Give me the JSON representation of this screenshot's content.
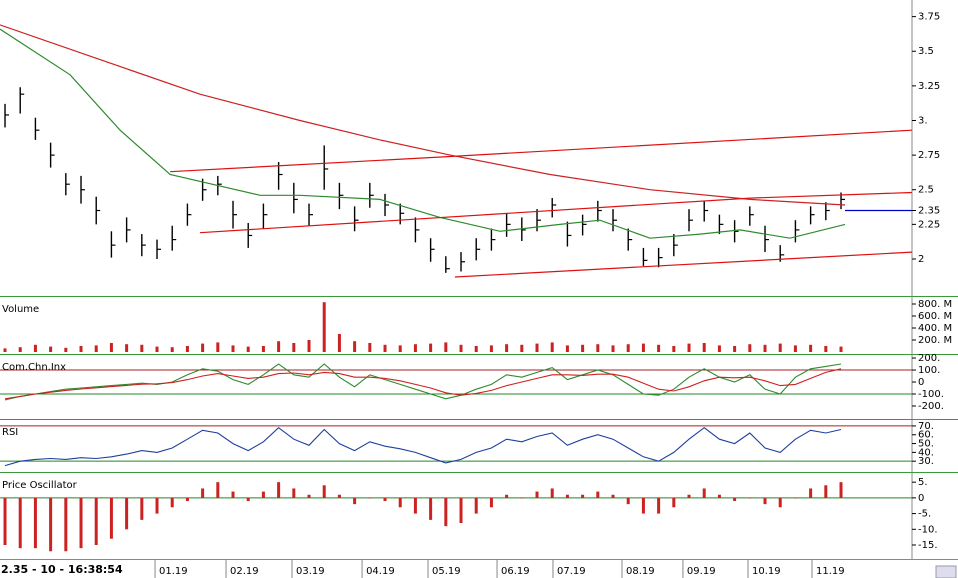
{
  "status": "2.35 - 10 - 16:38:54",
  "chart_data": [
    {
      "type": "ohlc",
      "color": "#000000",
      "xlim": [
        -0.33,
        59.67
      ],
      "xticks": [
        {
          "value": 9.87,
          "label": "01.19"
        },
        {
          "value": 14.54,
          "label": "02.19"
        },
        {
          "value": 18.88,
          "label": "03.19"
        },
        {
          "value": 23.49,
          "label": "04.19"
        },
        {
          "value": 27.83,
          "label": "05.19"
        },
        {
          "value": 32.37,
          "label": "06.19"
        },
        {
          "value": 36.05,
          "label": "07.19"
        },
        {
          "value": 40.59,
          "label": "08.19"
        },
        {
          "value": 44.6,
          "label": "09.19"
        },
        {
          "value": 48.88,
          "label": "10.19"
        },
        {
          "value": 53.09,
          "label": "11.19"
        }
      ],
      "ylim": [
        1.74,
        3.87
      ],
      "yticks": [
        2,
        2.25,
        2.35,
        2.5,
        2.75,
        {
          "value": 3,
          "label": "3."
        },
        3.25,
        3.5,
        3.75
      ],
      "high": [
        3.12,
        3.24,
        3.02,
        2.84,
        2.62,
        2.6,
        2.45,
        2.2,
        2.3,
        2.18,
        2.14,
        2.24,
        2.4,
        2.58,
        2.6,
        2.42,
        2.26,
        2.4,
        2.7,
        2.55,
        2.4,
        2.82,
        2.55,
        2.38,
        2.55,
        2.47,
        2.4,
        2.3,
        2.15,
        2.02,
        2.05,
        2.15,
        2.22,
        2.33,
        2.3,
        2.36,
        2.44,
        2.27,
        2.32,
        2.42,
        2.36,
        2.22,
        2.08,
        2.08,
        2.18,
        2.36,
        2.42,
        2.32,
        2.28,
        2.38,
        2.24,
        2.1,
        2.28,
        2.38,
        2.41,
        2.48
      ],
      "low": [
        2.95,
        3.05,
        2.86,
        2.66,
        2.46,
        2.4,
        2.25,
        2.01,
        2.12,
        2.02,
        2.0,
        2.06,
        2.24,
        2.42,
        2.46,
        2.22,
        2.08,
        2.22,
        2.5,
        2.33,
        2.24,
        2.5,
        2.36,
        2.2,
        2.37,
        2.31,
        2.25,
        2.12,
        1.98,
        1.9,
        1.91,
        1.99,
        2.06,
        2.16,
        2.13,
        2.2,
        2.3,
        2.09,
        2.17,
        2.27,
        2.2,
        2.06,
        1.95,
        1.94,
        2.02,
        2.2,
        2.27,
        2.18,
        2.12,
        2.24,
        2.05,
        1.98,
        2.12,
        2.25,
        2.28,
        2.36
      ],
      "close": [
        3.04,
        3.19,
        2.93,
        2.75,
        2.54,
        2.5,
        2.35,
        2.1,
        2.21,
        2.1,
        2.07,
        2.14,
        2.32,
        2.5,
        2.54,
        2.32,
        2.17,
        2.32,
        2.61,
        2.43,
        2.32,
        2.65,
        2.46,
        2.28,
        2.46,
        2.39,
        2.33,
        2.21,
        2.07,
        1.93,
        1.98,
        2.07,
        2.14,
        2.25,
        2.21,
        2.28,
        2.39,
        2.17,
        2.25,
        2.35,
        2.28,
        2.14,
        1.99,
        2.01,
        2.1,
        2.28,
        2.35,
        2.25,
        2.2,
        2.32,
        2.14,
        2.03,
        2.21,
        2.32,
        2.35,
        2.43
      ],
      "overlays": [
        {
          "color": "#2e8b2e",
          "x": [
            -0.33,
            4.28,
            7.57,
            10.86,
            16.78,
            19.41,
            24.67,
            28.62,
            32.57,
            36.51,
            39.14,
            42.43,
            45.72,
            48.36,
            51.64,
            55.26
          ],
          "values": [
            3.66,
            3.33,
            2.93,
            2.61,
            2.46,
            2.46,
            2.43,
            2.3,
            2.2,
            2.25,
            2.28,
            2.15,
            2.18,
            2.21,
            2.15,
            2.25
          ]
        },
        {
          "color": "#cc2222",
          "x": [
            -0.33,
            6.25,
            12.83,
            19.41,
            24.67,
            29.28,
            35.86,
            42.43,
            49.01,
            55.26
          ],
          "values": [
            3.69,
            3.44,
            3.19,
            3.0,
            2.86,
            2.75,
            2.61,
            2.5,
            2.43,
            2.39
          ]
        },
        {
          "color": "#dd1111",
          "x": [
            10.86,
            29.28,
            59.67
          ],
          "values": [
            2.63,
            2.74,
            2.93
          ]
        },
        {
          "color": "#dd1111",
          "x": [
            12.83,
            49.01,
            59.67
          ],
          "values": [
            2.19,
            2.44,
            2.48
          ]
        },
        {
          "color": "#dd1111",
          "x": [
            29.6,
            59.67
          ],
          "values": [
            1.87,
            2.05
          ]
        },
        {
          "color": "#0000cc",
          "x": [
            55.26,
            59.67
          ],
          "values": [
            2.35,
            2.35
          ]
        }
      ]
    },
    {
      "type": "bar",
      "title": "Volume",
      "color": "#cc2222",
      "ylim": [
        0,
        900
      ],
      "yticks": [
        {
          "value": 200,
          "label": "200. M"
        },
        {
          "value": 400,
          "label": "400. M"
        },
        {
          "value": 600,
          "label": "600. M"
        },
        {
          "value": 800,
          "label": "800. M"
        }
      ],
      "values": [
        60,
        80,
        120,
        90,
        70,
        100,
        110,
        150,
        130,
        120,
        90,
        80,
        100,
        140,
        160,
        110,
        90,
        100,
        180,
        150,
        200,
        830,
        300,
        180,
        150,
        120,
        110,
        130,
        140,
        160,
        120,
        100,
        110,
        130,
        120,
        140,
        160,
        110,
        120,
        130,
        110,
        130,
        140,
        120,
        100,
        140,
        150,
        110,
        100,
        130,
        120,
        140,
        110,
        120,
        100,
        90
      ]
    },
    {
      "type": "line",
      "title": "Com.Chn.Inx",
      "ylim": [
        -300,
        217
      ],
      "yticks": [
        {
          "value": -200,
          "label": "-200."
        },
        {
          "value": -100,
          "label": "-100."
        },
        0,
        {
          "value": 100,
          "label": "100."
        },
        {
          "value": 200,
          "label": "200."
        }
      ],
      "levels": [
        {
          "value": 100,
          "color": "#aa2222"
        },
        {
          "value": -100,
          "color": "#228822"
        }
      ],
      "series": [
        {
          "color": "#2e8b2e",
          "values": [
            -150,
            -120,
            -100,
            -80,
            -60,
            -50,
            -40,
            -30,
            -20,
            -10,
            -20,
            0,
            60,
            110,
            90,
            20,
            -20,
            60,
            150,
            60,
            40,
            150,
            40,
            -40,
            60,
            20,
            -20,
            -60,
            -100,
            -140,
            -110,
            -60,
            -20,
            60,
            40,
            80,
            120,
            20,
            60,
            100,
            60,
            -20,
            -100,
            -110,
            -60,
            40,
            110,
            40,
            0,
            60,
            -60,
            -100,
            40,
            110,
            130,
            150
          ]
        },
        {
          "color": "#cc2222",
          "values": [
            -140,
            -120,
            -100,
            -85,
            -70,
            -58,
            -48,
            -38,
            -28,
            -18,
            -15,
            -5,
            20,
            50,
            70,
            50,
            30,
            40,
            70,
            75,
            60,
            80,
            70,
            40,
            40,
            30,
            10,
            -20,
            -50,
            -90,
            -110,
            -95,
            -70,
            -30,
            0,
            30,
            60,
            60,
            55,
            65,
            65,
            40,
            -10,
            -60,
            -75,
            -40,
            10,
            40,
            35,
            40,
            10,
            -30,
            -20,
            30,
            80,
            110
          ]
        }
      ]
    },
    {
      "type": "line",
      "title": "RSI",
      "ylim": [
        20,
        75.6
      ],
      "yticks": [
        {
          "value": 30,
          "label": "30."
        },
        {
          "value": 40,
          "label": "40."
        },
        {
          "value": 50,
          "label": "50."
        },
        {
          "value": 60,
          "label": "60."
        },
        {
          "value": 70,
          "label": "70."
        }
      ],
      "levels": [
        {
          "value": 70,
          "color": "#aa2222"
        },
        {
          "value": 30,
          "color": "#228822"
        }
      ],
      "series": [
        {
          "color": "#1f3f9f",
          "values": [
            25,
            30,
            32,
            33,
            32,
            34,
            33,
            35,
            38,
            42,
            40,
            45,
            55,
            65,
            62,
            50,
            42,
            52,
            68,
            55,
            48,
            66,
            50,
            42,
            52,
            47,
            44,
            40,
            34,
            28,
            32,
            40,
            45,
            55,
            52,
            58,
            62,
            48,
            55,
            60,
            55,
            45,
            35,
            30,
            40,
            55,
            68,
            55,
            50,
            62,
            45,
            40,
            55,
            65,
            62,
            66
          ]
        }
      ]
    },
    {
      "type": "bar",
      "title": "Price Oscillator",
      "color": "#cc2222",
      "ylim": [
        -18.5,
        7.6
      ],
      "yticks": [
        {
          "value": -15,
          "label": "-15."
        },
        {
          "value": -10,
          "label": "-10."
        },
        {
          "value": -5,
          "label": "-5."
        },
        0,
        {
          "value": 5,
          "label": "5."
        }
      ],
      "levels": [
        {
          "value": 0,
          "color": "#228822"
        }
      ],
      "values": [
        -15,
        -16,
        -16,
        -17,
        -17,
        -16,
        -15,
        -13,
        -10,
        -7,
        -5,
        -3,
        -1,
        3,
        5,
        2,
        -1,
        2,
        5,
        3,
        1,
        4,
        1,
        -2,
        0,
        -1,
        -3,
        -5,
        -7,
        -9,
        -8,
        -5,
        -3,
        1,
        0,
        2,
        3,
        1,
        1,
        2,
        1,
        -2,
        -5,
        -5,
        -3,
        1,
        3,
        1,
        -1,
        0,
        -2,
        -3,
        0,
        3,
        4,
        5
      ]
    }
  ]
}
